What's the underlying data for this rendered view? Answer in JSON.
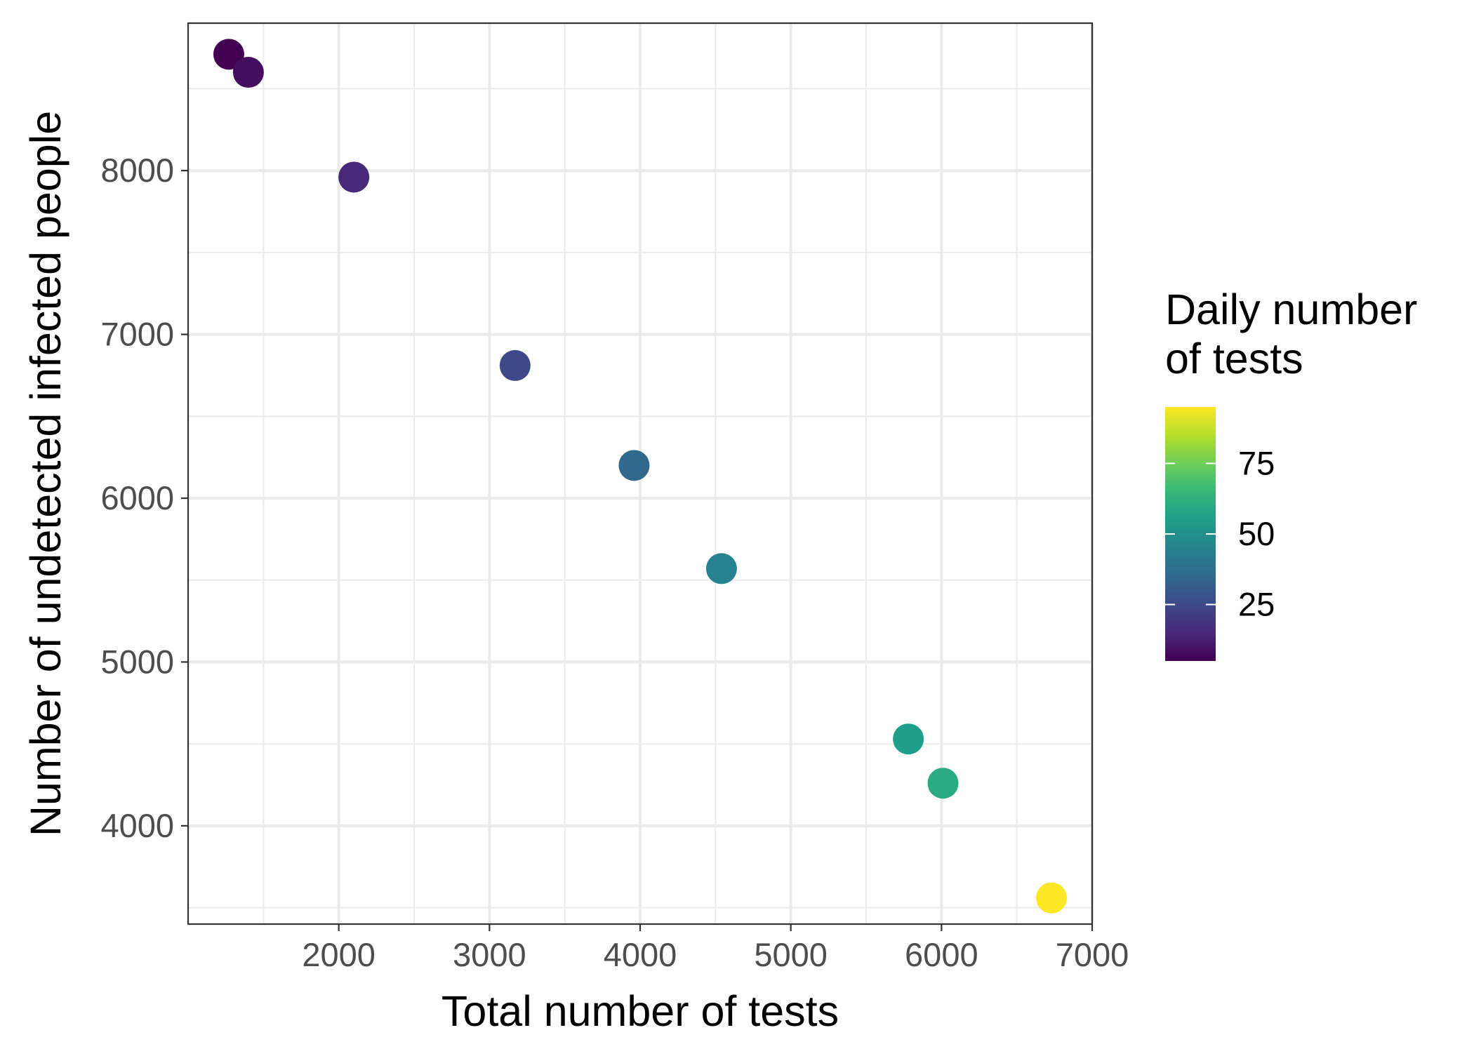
{
  "chart_data": {
    "type": "scatter",
    "title": "",
    "xlabel": "Total number of tests",
    "ylabel": "Number of undetected infected people",
    "xlim": [
      1000,
      7000
    ],
    "ylim": [
      3400,
      8900
    ],
    "x_ticks": [
      2000,
      3000,
      4000,
      5000,
      6000,
      7000
    ],
    "y_ticks": [
      4000,
      5000,
      6000,
      7000,
      8000
    ],
    "x_tick_labels": [
      "2000",
      "3000",
      "4000",
      "5000",
      "6000",
      "7000"
    ],
    "y_tick_labels": [
      "4000",
      "5000",
      "6000",
      "7000",
      "8000"
    ],
    "grid": true,
    "points": [
      {
        "x": 1270,
        "y": 8710,
        "color_value": 5
      },
      {
        "x": 1400,
        "y": 8600,
        "color_value": 8
      },
      {
        "x": 2100,
        "y": 7960,
        "color_value": 15
      },
      {
        "x": 3170,
        "y": 6810,
        "color_value": 25
      },
      {
        "x": 3960,
        "y": 6200,
        "color_value": 35
      },
      {
        "x": 4540,
        "y": 5570,
        "color_value": 45
      },
      {
        "x": 5780,
        "y": 4530,
        "color_value": 55
      },
      {
        "x": 6010,
        "y": 4260,
        "color_value": 60
      },
      {
        "x": 6730,
        "y": 3560,
        "color_value": 95
      }
    ],
    "legend": {
      "title_lines": [
        "Daily number",
        "of tests"
      ],
      "type": "colorbar",
      "placement": "right",
      "range": [
        5,
        95
      ],
      "ticks": [
        25,
        50,
        75
      ],
      "tick_labels": [
        "25",
        "50",
        "75"
      ],
      "colormap": [
        "#440154",
        "#482878",
        "#3e4989",
        "#31688e",
        "#26828e",
        "#1f9e89",
        "#35b779",
        "#6ece58",
        "#b5de2b",
        "#fde725"
      ]
    }
  }
}
